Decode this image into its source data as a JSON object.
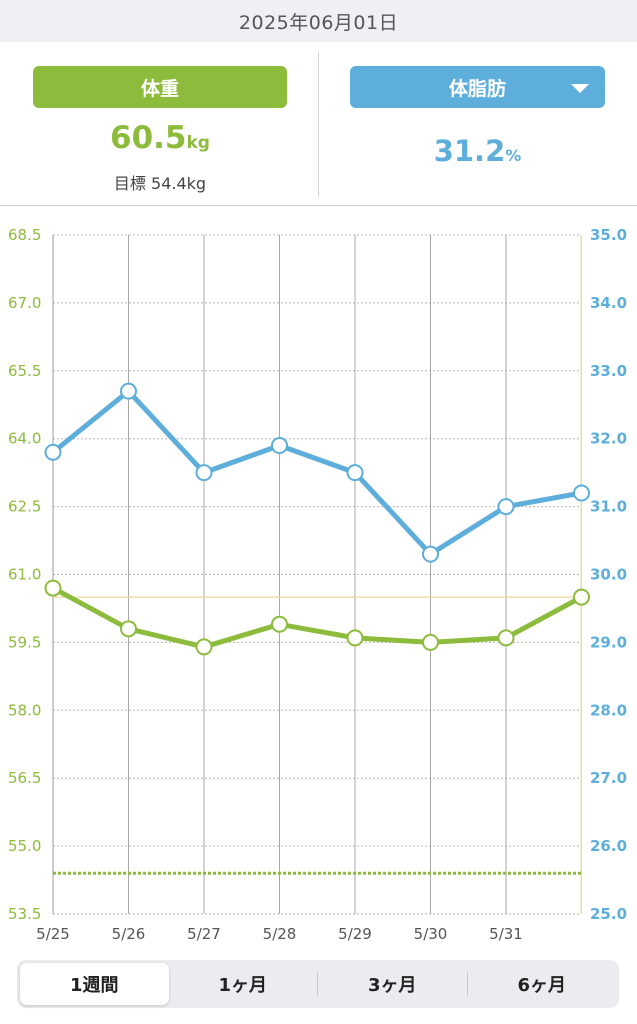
{
  "header": {
    "date": "2025年06月01日"
  },
  "stats": {
    "weight": {
      "label": "体重",
      "value": "60.5",
      "unit": "kg",
      "goal_label": "目標",
      "goal_value": "54.4kg"
    },
    "body_fat": {
      "label": "体脂肪",
      "value": "31.2",
      "unit": "%"
    }
  },
  "colors": {
    "weight": "#8dbb3c",
    "fat": "#5eaedb",
    "grid": "#bbbbbb"
  },
  "chart_data": {
    "type": "line",
    "categories": [
      "5/25",
      "5/26",
      "5/27",
      "5/28",
      "5/29",
      "5/30",
      "5/31",
      ""
    ],
    "y_left": {
      "min": 53.5,
      "max": 68.5,
      "ticks": [
        "68.5",
        "67.0",
        "65.5",
        "64.0",
        "62.5",
        "61.0",
        "59.5",
        "58.0",
        "56.5",
        "55.0",
        "53.5"
      ]
    },
    "y_right": {
      "min": 25.0,
      "max": 35.0,
      "ticks": [
        "35.0",
        "34.0",
        "33.0",
        "32.0",
        "31.0",
        "30.0",
        "29.0",
        "28.0",
        "27.0",
        "26.0",
        "25.0"
      ]
    },
    "series": [
      {
        "axis": "right",
        "color": "#5eaedb",
        "values": [
          31.8,
          32.7,
          31.5,
          31.9,
          31.5,
          30.3,
          31.0,
          31.2
        ]
      },
      {
        "axis": "left",
        "color": "#8dbb3c",
        "values": [
          60.7,
          59.8,
          59.4,
          59.9,
          59.6,
          59.5,
          59.6,
          60.5
        ]
      }
    ],
    "reference_lines": [
      {
        "axis": "left",
        "value": 60.5,
        "style": "solid",
        "color": "#e8d99a"
      },
      {
        "axis": "left",
        "value": 54.4,
        "style": "dotted",
        "color": "#8dbb3c"
      }
    ],
    "grid": true
  },
  "period_tabs": [
    {
      "label": "1週間",
      "active": true
    },
    {
      "label": "1ヶ月",
      "active": false
    },
    {
      "label": "3ヶ月",
      "active": false
    },
    {
      "label": "6ヶ月",
      "active": false
    }
  ]
}
